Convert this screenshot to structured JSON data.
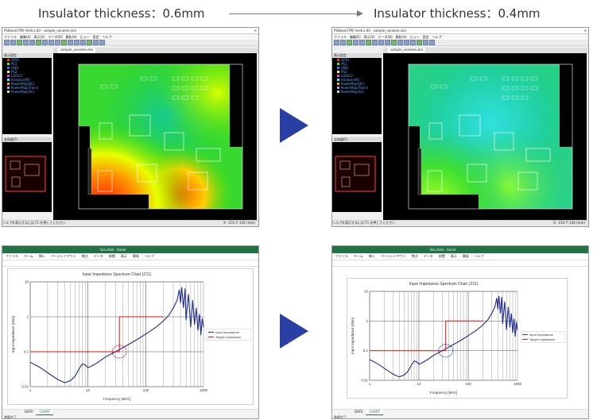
{
  "header": {
    "left_title": "Insulator thickness：0.6mm",
    "right_title": "Insulator thickness：0.4mm"
  },
  "cad": {
    "window_title": "PSBeam(TM) Ver8.x.00 - sample_noname.dsn",
    "menu": [
      "ファイル",
      "編集(E)",
      "表示(V)",
      "データ(D)",
      "解析(A)",
      "ビュー",
      "設定",
      "ヘルプ"
    ],
    "layer_header": "表示設定",
    "layers": [
      {
        "name": "GPS1",
        "color": "#ff3030"
      },
      {
        "name": "PS1",
        "color": "#30ff30"
      },
      {
        "name": "GND",
        "color": "#3070ff"
      },
      {
        "name": "PS2",
        "color": "#ffff30"
      },
      {
        "name": "LOGIC2",
        "color": "#ff30ff"
      },
      {
        "name": "Analysis(IR)",
        "color": "#30ffff"
      },
      {
        "name": "PowerMap(DC)",
        "color": "#ffa030"
      },
      {
        "name": "PowerMap(Trans)",
        "color": "#a0a0ff"
      },
      {
        "name": "PowerMap(AC)",
        "color": "#a0ffa0"
      }
    ],
    "overview_header": "全体図(F)",
    "tab_label": "sample_noname.dsn",
    "status_left": "ヘルプを表示するには F1 を押してください",
    "status_right_left": "X: -231 Y: 145 (mm)",
    "status_right_right": "X: -233 Y: 146 (mm)",
    "brand_color": "#2a3fa3"
  },
  "excel": {
    "left_title": "Sss.xlsm - Excel",
    "right_title": "Sss.xlsm - Excel",
    "menu": [
      "ファイル",
      "ホーム",
      "挿入",
      "ページレイアウト",
      "数式",
      "データ",
      "校閲",
      "表示",
      "開発",
      "ヘルプ"
    ],
    "sheets": [
      "DATA",
      "CHART"
    ],
    "status": "準備完了",
    "accent": "#217346"
  },
  "chart_data": [
    {
      "type": "line",
      "title": "Input Impedance Spectrum Chart (Z11)",
      "xlabel": "Frequency [MHz]",
      "ylabel": "Input Impedance [ohm]",
      "xscale": "log",
      "yscale": "log",
      "xlim": [
        1,
        1000
      ],
      "ylim": [
        0.01,
        10
      ],
      "x_ticks": [
        "1",
        "10",
        "100",
        "1000"
      ],
      "y_ticks": [
        "0.01",
        "0.1",
        "1",
        "10"
      ],
      "legend_position": "right",
      "series": [
        {
          "name": "Input Impedance",
          "color": "#1f2a8c",
          "x": [
            1,
            1.5,
            2,
            3,
            4,
            5,
            6,
            7,
            8,
            9,
            10,
            12,
            15,
            20,
            30,
            40,
            50,
            70,
            100,
            150,
            200,
            250,
            300,
            350,
            380,
            400,
            420,
            450,
            480,
            500,
            550,
            600,
            650,
            700,
            750,
            800,
            850,
            900,
            950,
            1000
          ],
          "y": [
            0.05,
            0.035,
            0.025,
            0.016,
            0.013,
            0.015,
            0.02,
            0.032,
            0.045,
            0.042,
            0.035,
            0.04,
            0.05,
            0.07,
            0.1,
            0.13,
            0.16,
            0.22,
            0.32,
            0.5,
            0.75,
            1.1,
            1.8,
            3.0,
            6.0,
            2.5,
            7.0,
            1.8,
            6.5,
            0.8,
            4.5,
            0.5,
            3.0,
            0.6,
            1.8,
            0.4,
            1.2,
            0.3,
            0.9,
            0.5
          ]
        },
        {
          "name": "Target Impedance",
          "color": "#e01010",
          "x": [
            1,
            35,
            35,
            200
          ],
          "y": [
            0.1,
            0.1,
            1,
            1
          ]
        }
      ]
    }
  ]
}
